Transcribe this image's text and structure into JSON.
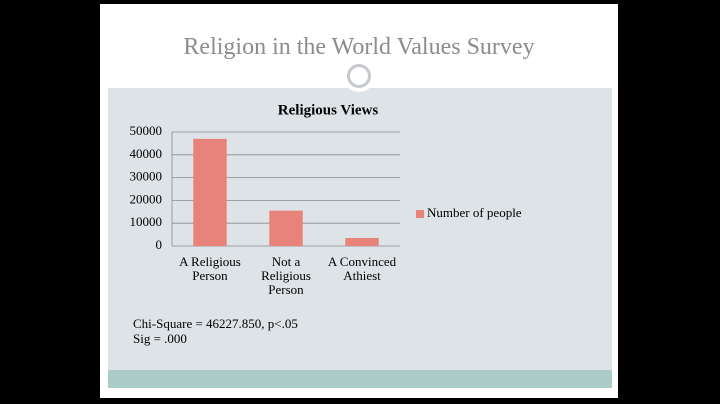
{
  "slide_title": "Religion in the World Values Survey",
  "chart_data": {
    "type": "bar",
    "title": "Religious Views",
    "categories": [
      "A Religious Person",
      "Not a Religious Person",
      "A Convinced Athiest"
    ],
    "series": [
      {
        "name": "Number of people",
        "color": "#e8837c",
        "values": [
          47000,
          15500,
          3500
        ]
      }
    ],
    "ylim": [
      0,
      50000
    ],
    "yticks": [
      0,
      10000,
      20000,
      30000,
      40000,
      50000
    ],
    "grid": true,
    "legend": "right"
  },
  "notes": [
    "Chi-Square = 46227.850, p<.05",
    "Sig = .000"
  ]
}
